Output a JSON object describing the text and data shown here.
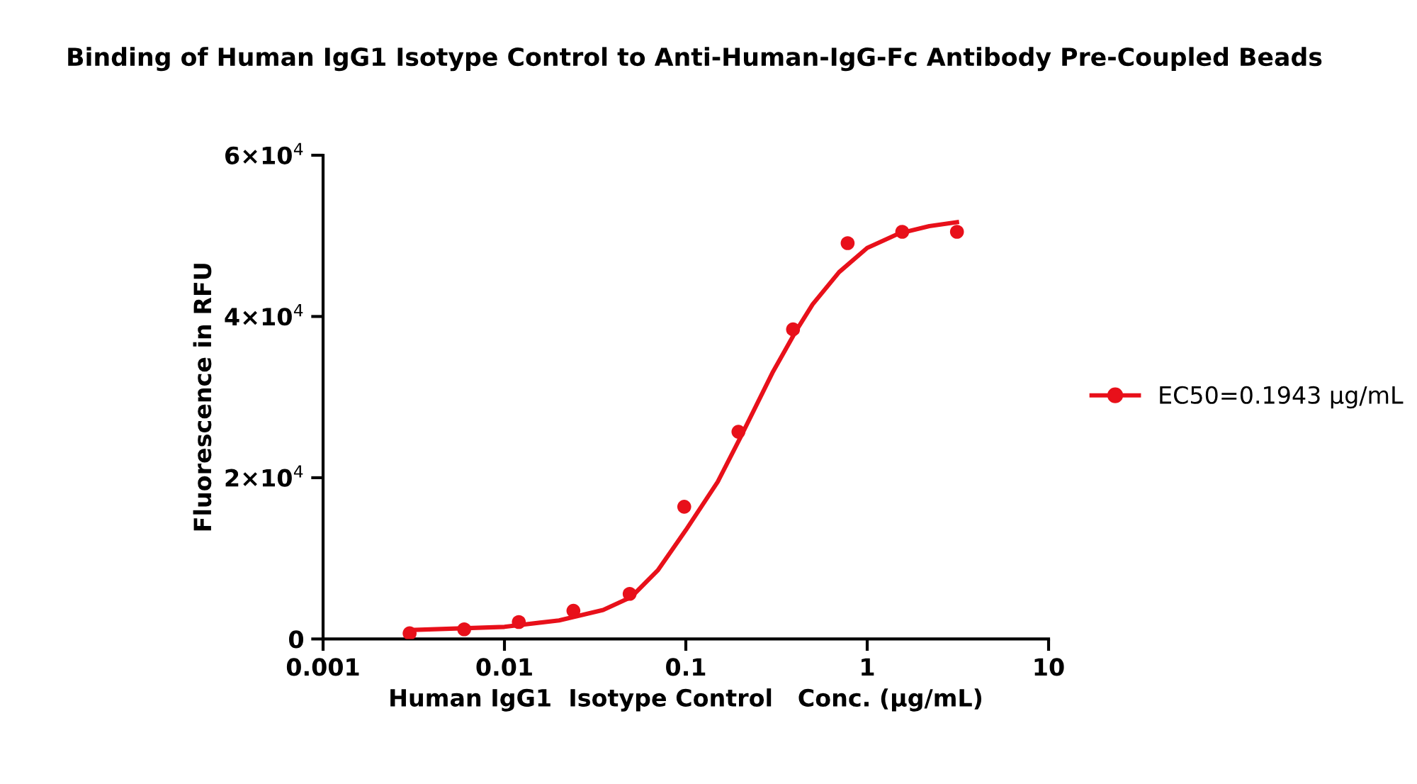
{
  "chart_data": {
    "type": "scatter",
    "title": "Binding of Human IgG1 Isotype Control to Anti-Human-IgG-Fc Antibody Pre-Coupled Beads",
    "xlabel": "Human IgG1  Isotype Control   Conc. (µg/mL)",
    "ylabel": "Fluorescence in RFU",
    "log": "x",
    "xlim": [
      0.001,
      10
    ],
    "xticks": [
      0.001,
      0.01,
      0.1,
      1,
      10
    ],
    "ylim": [
      0,
      60000
    ],
    "yticks": [
      {
        "value": 0,
        "label": "0"
      },
      {
        "value": 20000,
        "label": "2×10$^{4}$"
      },
      {
        "value": 40000,
        "label": "4×10$^{4}$"
      },
      {
        "value": 60000,
        "label": "6×10$^{4}$"
      }
    ],
    "grid": false,
    "legend": "right",
    "series": [
      {
        "name": "EC50=0.1943 µg/mL",
        "marker": "circle",
        "color": "#e8101a",
        "x": [
          0.003,
          0.006,
          0.012,
          0.024,
          0.049,
          0.098,
          0.195,
          0.39,
          0.78,
          1.56,
          3.125
        ],
        "values": [
          700,
          1200,
          2100,
          3500,
          5600,
          16400,
          25700,
          38400,
          49100,
          50500,
          50500
        ]
      },
      {
        "type": "line",
        "marker": "none",
        "color": "#e8101a",
        "x": [
          0.003,
          0.01,
          0.02,
          0.035,
          0.05,
          0.07,
          0.1,
          0.15,
          0.2,
          0.3,
          0.4,
          0.5,
          0.7,
          1,
          1.5,
          2.2,
          3.125
        ],
        "values": [
          1100,
          1500,
          2300,
          3600,
          5200,
          8500,
          13500,
          19500,
          25000,
          33000,
          38000,
          41500,
          45500,
          48500,
          50300,
          51200,
          51700
        ]
      }
    ]
  }
}
